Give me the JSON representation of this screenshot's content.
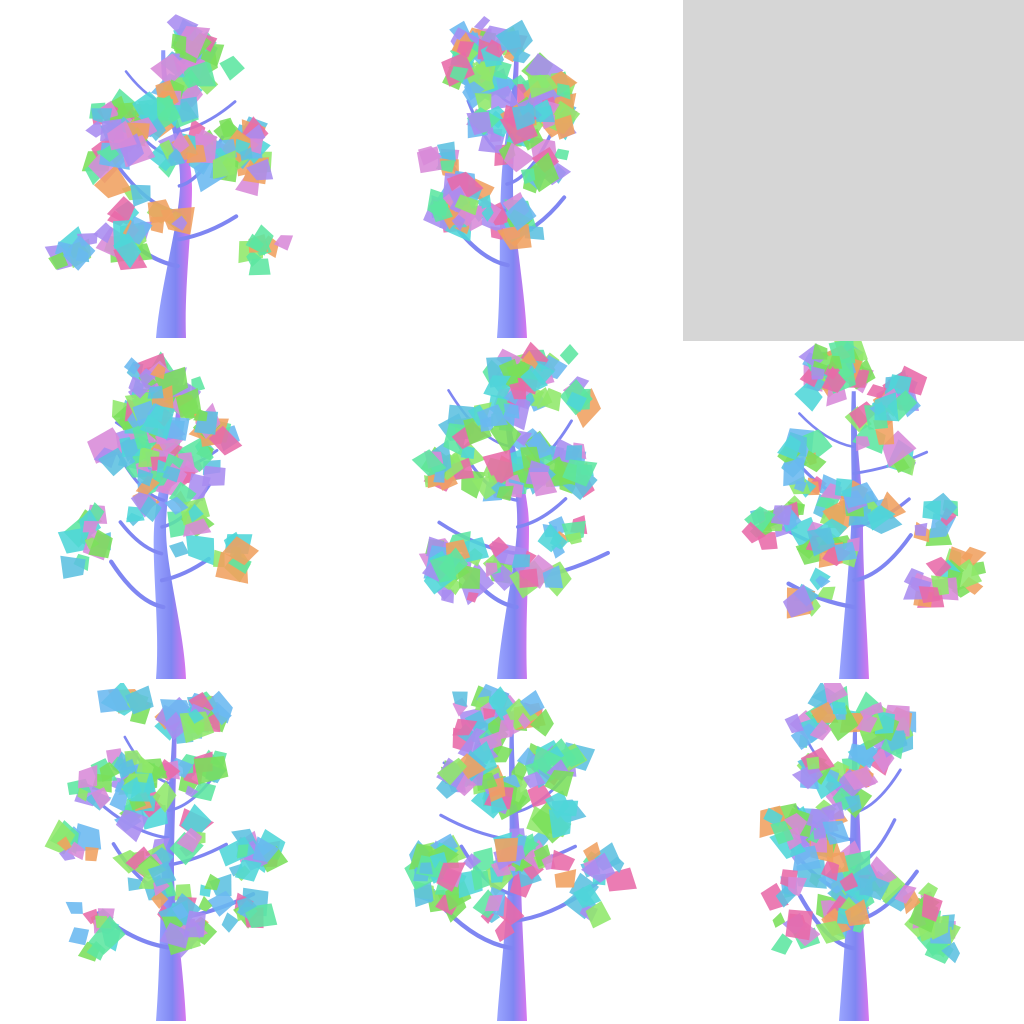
{
  "grid": {
    "rows": 3,
    "cols": 3,
    "background": "#ffffff",
    "empty_cell_color": "#d6d6d6"
  },
  "palette": {
    "trunk_light": "#9aa6ff",
    "trunk_mid": "#7f86f2",
    "trunk_side": "#d877f0",
    "leaf": [
      "#5ce6a0",
      "#4fd6d8",
      "#8fe86a",
      "#e86aa8",
      "#a98cf0",
      "#6ab8f0",
      "#f0a060",
      "#7adf5a",
      "#d88ad8",
      "#5cc0e0"
    ]
  },
  "tiles": [
    {
      "id": "tree-1",
      "empty": false,
      "seed": 11,
      "bend": 0.35,
      "spread": 0.85,
      "height": 0.97
    },
    {
      "id": "tree-2",
      "empty": false,
      "seed": 23,
      "bend": -0.15,
      "spread": 0.75,
      "height": 0.98
    },
    {
      "id": "empty-tile",
      "empty": true
    },
    {
      "id": "tree-4",
      "empty": false,
      "seed": 37,
      "bend": -0.3,
      "spread": 0.8,
      "height": 0.97
    },
    {
      "id": "tree-5",
      "empty": false,
      "seed": 41,
      "bend": 0.25,
      "spread": 1.0,
      "height": 0.97
    },
    {
      "id": "tree-6",
      "empty": false,
      "seed": 53,
      "bend": 0.05,
      "spread": 1.0,
      "height": 0.97
    },
    {
      "id": "tree-7",
      "empty": false,
      "seed": 67,
      "bend": -0.1,
      "spread": 1.05,
      "height": 0.99
    },
    {
      "id": "tree-8",
      "empty": false,
      "seed": 79,
      "bend": 0.05,
      "spread": 1.0,
      "height": 0.98
    },
    {
      "id": "tree-9",
      "empty": false,
      "seed": 83,
      "bend": 0.0,
      "spread": 0.8,
      "height": 0.98
    }
  ]
}
